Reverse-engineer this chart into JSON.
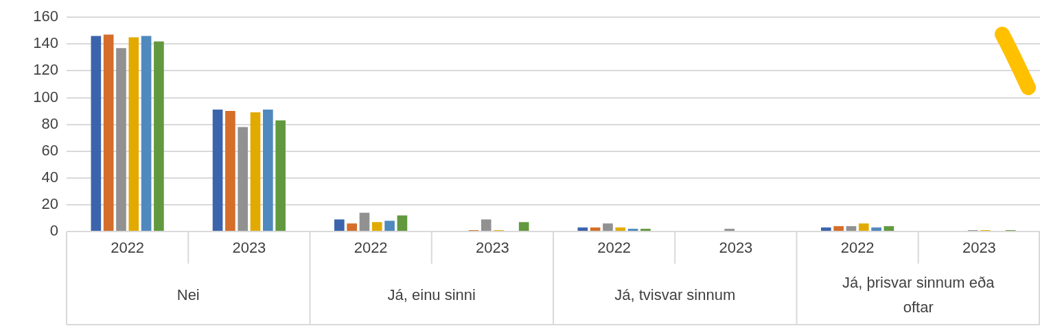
{
  "chart_data": {
    "type": "bar",
    "categories": [
      "2022",
      "2023",
      "2022",
      "2023",
      "2022",
      "2023",
      "2022",
      "2023"
    ],
    "series": [
      {
        "color": "#3c64ac",
        "values": [
          146,
          91,
          9,
          0,
          3,
          0,
          3,
          0
        ]
      },
      {
        "color": "#d46e2a",
        "values": [
          147,
          90,
          6,
          1,
          3,
          0,
          4,
          0
        ]
      },
      {
        "color": "#919191",
        "values": [
          137,
          78,
          14,
          9,
          6,
          2,
          4,
          1
        ]
      },
      {
        "color": "#e2aa00",
        "values": [
          145,
          89,
          7,
          1,
          3,
          0,
          6,
          1
        ]
      },
      {
        "color": "#4f89be",
        "values": [
          146,
          91,
          8,
          0,
          2,
          0,
          3,
          0
        ]
      },
      {
        "color": "#62993f",
        "values": [
          142,
          83,
          12,
          7,
          2,
          0,
          4,
          1
        ]
      }
    ],
    "annotations": [
      "Nei",
      "Já, einu sinni",
      "Já, tvisvar sinnum",
      "Já, þrisvar sinnum eða oftar"
    ],
    "ylim": [
      0,
      160
    ],
    "yticks": [
      0,
      20,
      40,
      60,
      80,
      100,
      120,
      140,
      160
    ],
    "grid": "y",
    "legend": false
  }
}
